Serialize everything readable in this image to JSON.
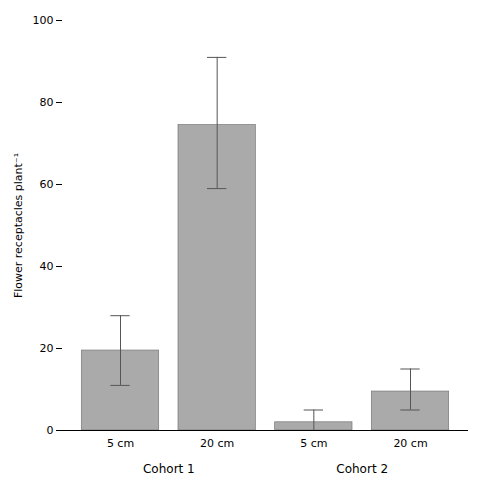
{
  "chart_data": {
    "type": "bar",
    "categories": [
      "5 cm",
      "20 cm",
      "5 cm",
      "20 cm"
    ],
    "groups": [
      "Cohort 1",
      "Cohort 1",
      "Cohort 2",
      "Cohort 2"
    ],
    "values": [
      19.5,
      74.5,
      2.0,
      9.5
    ],
    "error_lower": [
      8.5,
      15.5,
      2.0,
      4.5
    ],
    "error_upper": [
      8.5,
      16.5,
      3.0,
      5.5
    ],
    "color": "#aaaaaa",
    "ylabel": "Flower receptacles plant⁻¹",
    "ylim": [
      0,
      100
    ],
    "yticks": [
      0,
      20,
      40,
      60,
      80,
      100
    ],
    "grid": false
  }
}
